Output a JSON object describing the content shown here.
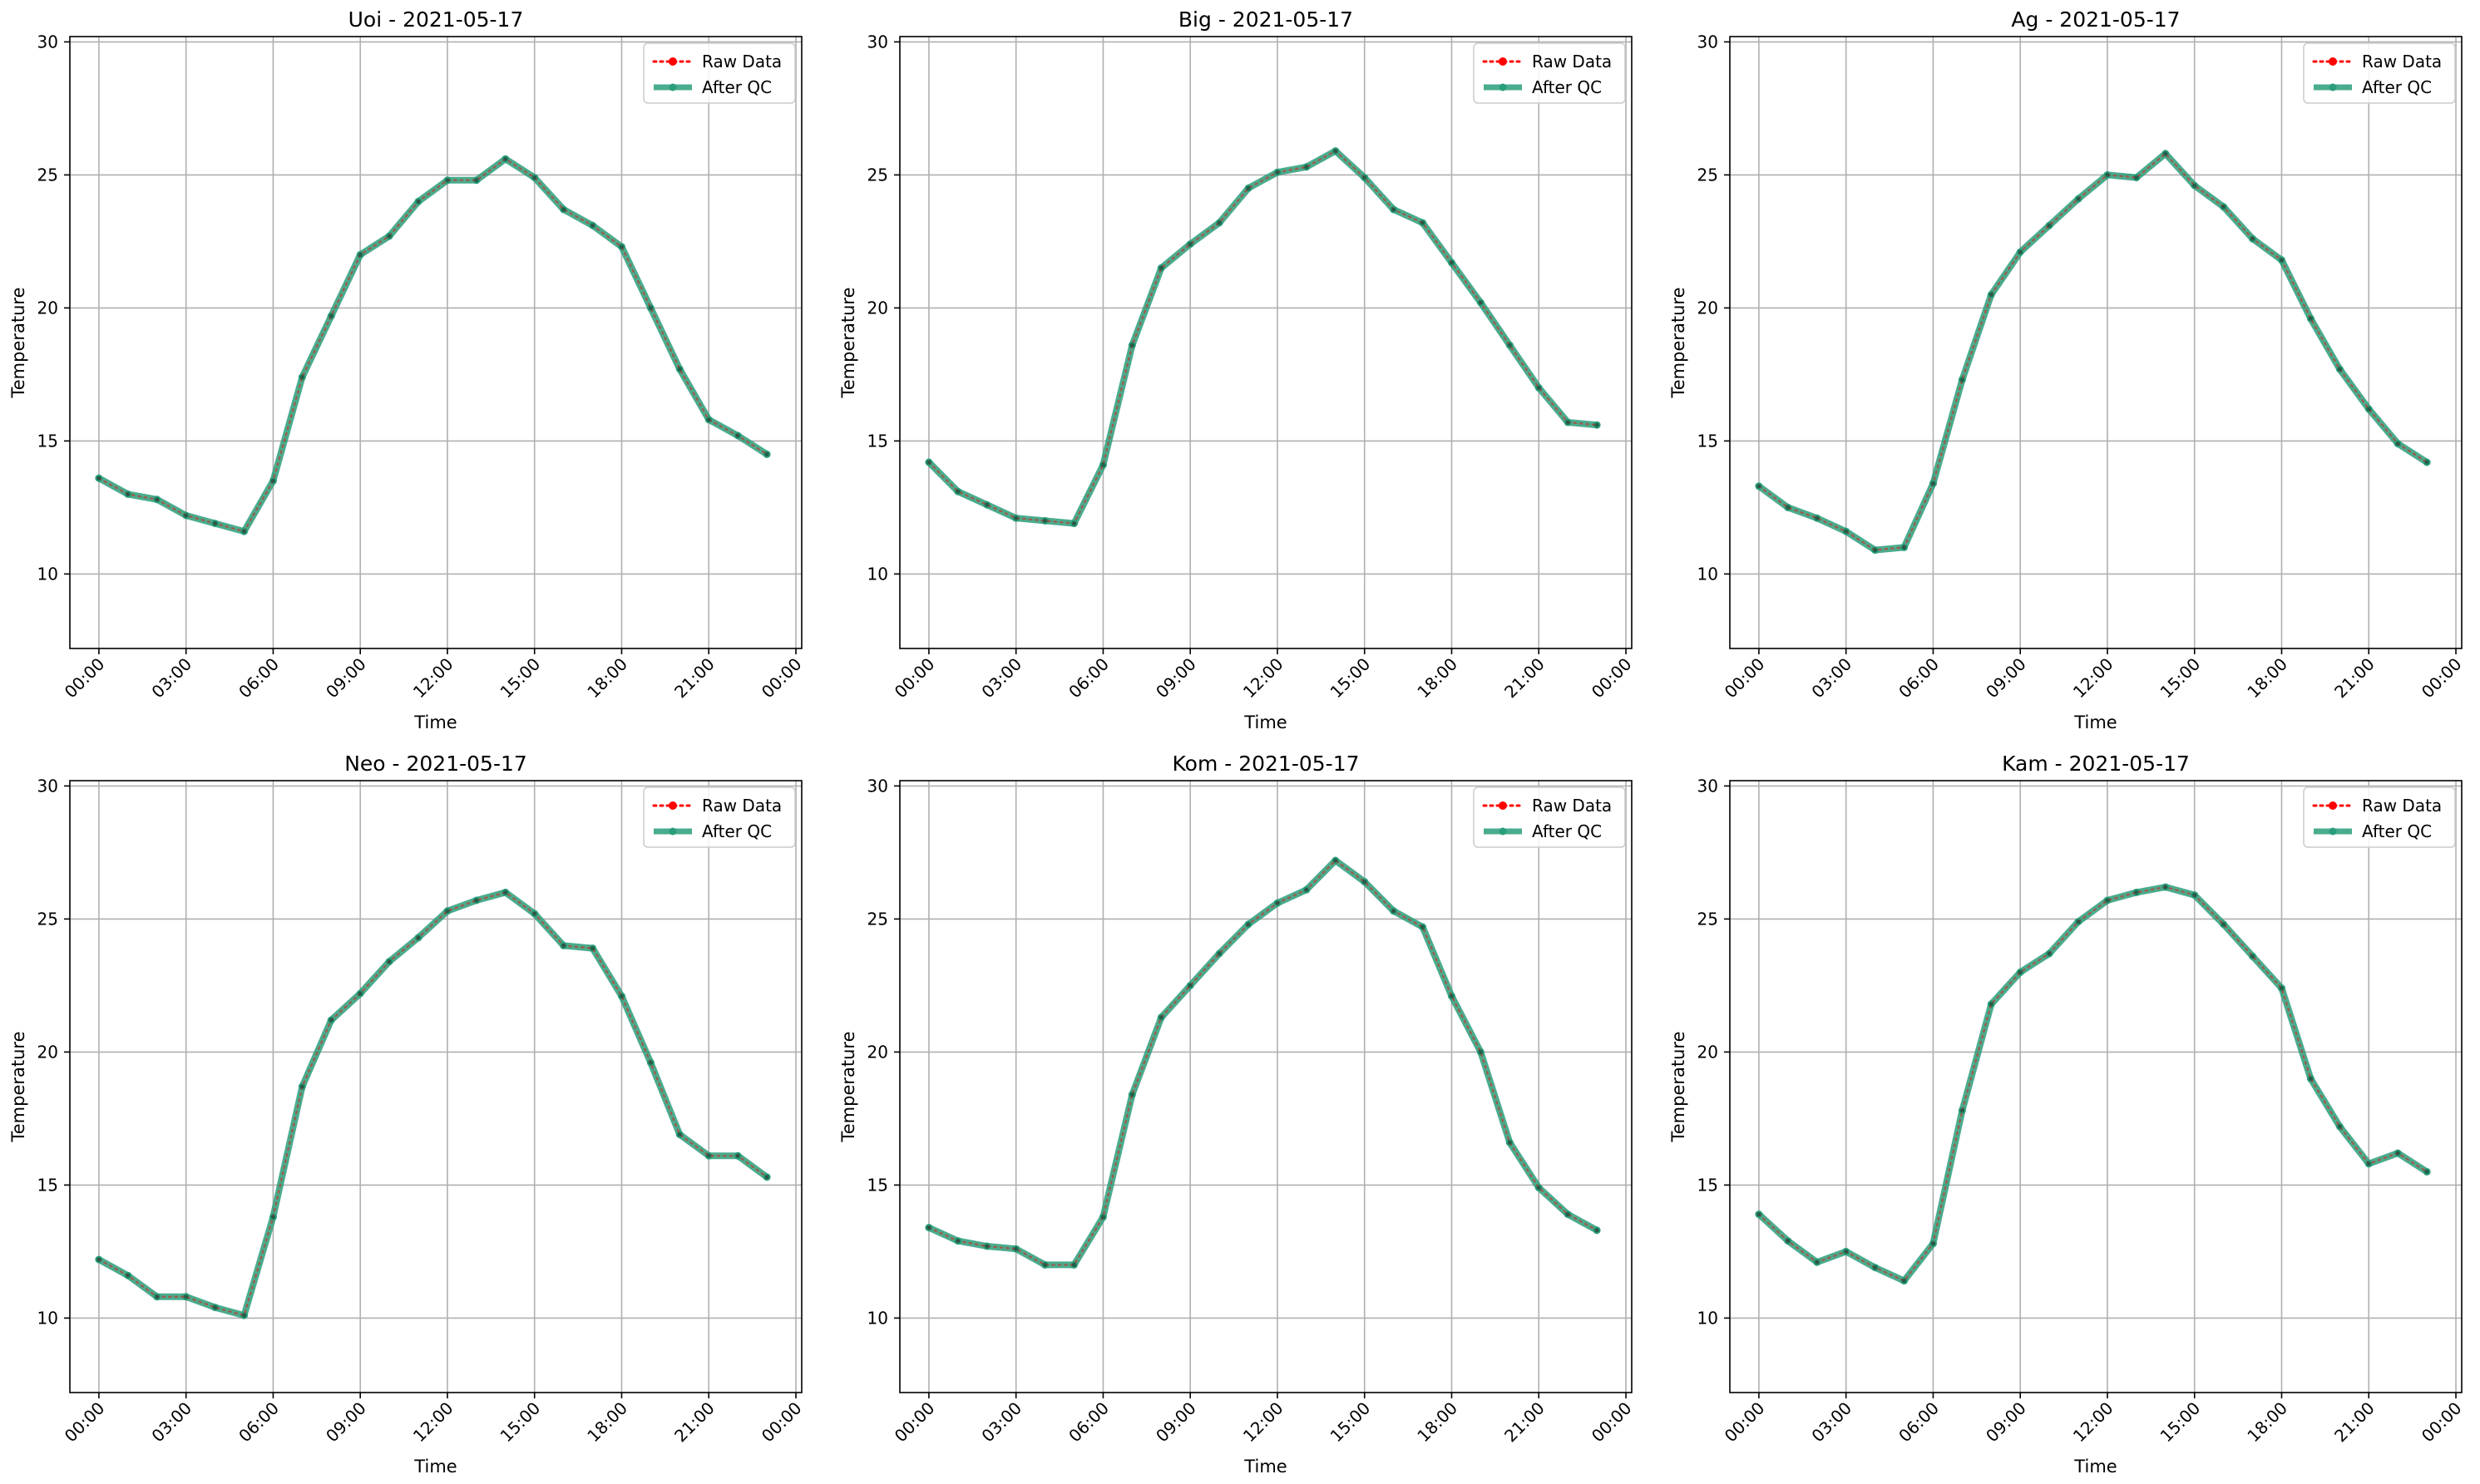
{
  "chart_data": [
    {
      "type": "line",
      "title": "Uoi - 2021-05-17",
      "xlabel": "Time",
      "ylabel": "Temperature",
      "ylim": [
        7.2,
        30.2
      ],
      "yticks": [
        10,
        15,
        20,
        25,
        30
      ],
      "xlim": [
        -1,
        24.2
      ],
      "xticks": [
        0,
        3,
        6,
        9,
        12,
        15,
        18,
        21,
        24
      ],
      "xticklabels": [
        "00:00",
        "03:00",
        "06:00",
        "09:00",
        "12:00",
        "15:00",
        "18:00",
        "21:00",
        "00:00"
      ],
      "grid": true,
      "legend_position": "top-right",
      "x": [
        0,
        1,
        2,
        3,
        4,
        5,
        6,
        7,
        8,
        9,
        10,
        11,
        12,
        13,
        14,
        15,
        16,
        17,
        18,
        19,
        20,
        21,
        22,
        23
      ],
      "series": [
        {
          "name": "Raw Data",
          "color": "#ff0000",
          "style": "dotted",
          "values": [
            13.6,
            13.0,
            12.8,
            12.2,
            11.9,
            11.6,
            13.5,
            17.4,
            19.7,
            22.0,
            22.7,
            24.0,
            24.8,
            24.8,
            25.6,
            24.9,
            23.7,
            23.1,
            22.3,
            20.0,
            17.7,
            15.8,
            15.2,
            14.5
          ]
        },
        {
          "name": "After QC",
          "color": "#2a9d7a",
          "style": "solid",
          "values": [
            13.6,
            13.0,
            12.8,
            12.2,
            11.9,
            11.6,
            13.5,
            17.4,
            19.7,
            22.0,
            22.7,
            24.0,
            24.8,
            24.8,
            25.6,
            24.9,
            23.7,
            23.1,
            22.3,
            20.0,
            17.7,
            15.8,
            15.2,
            14.5
          ]
        }
      ]
    },
    {
      "type": "line",
      "title": "Big - 2021-05-17",
      "xlabel": "Time",
      "ylabel": "Temperature",
      "ylim": [
        7.2,
        30.2
      ],
      "yticks": [
        10,
        15,
        20,
        25,
        30
      ],
      "xlim": [
        -1,
        24.2
      ],
      "xticks": [
        0,
        3,
        6,
        9,
        12,
        15,
        18,
        21,
        24
      ],
      "xticklabels": [
        "00:00",
        "03:00",
        "06:00",
        "09:00",
        "12:00",
        "15:00",
        "18:00",
        "21:00",
        "00:00"
      ],
      "grid": true,
      "legend_position": "top-right",
      "x": [
        0,
        1,
        2,
        3,
        4,
        5,
        6,
        7,
        8,
        9,
        10,
        11,
        12,
        13,
        14,
        15,
        16,
        17,
        18,
        19,
        20,
        21,
        22,
        23
      ],
      "series": [
        {
          "name": "Raw Data",
          "color": "#ff0000",
          "style": "dotted",
          "values": [
            14.2,
            13.1,
            12.6,
            12.1,
            12.0,
            11.9,
            14.1,
            18.6,
            21.5,
            22.4,
            23.2,
            24.5,
            25.1,
            25.3,
            25.9,
            24.9,
            23.7,
            23.2,
            21.7,
            20.2,
            18.6,
            17.0,
            15.7,
            15.6
          ]
        },
        {
          "name": "After QC",
          "color": "#2a9d7a",
          "style": "solid",
          "values": [
            14.2,
            13.1,
            12.6,
            12.1,
            12.0,
            11.9,
            14.1,
            18.6,
            21.5,
            22.4,
            23.2,
            24.5,
            25.1,
            25.3,
            25.9,
            24.9,
            23.7,
            23.2,
            21.7,
            20.2,
            18.6,
            17.0,
            15.7,
            15.6
          ]
        }
      ]
    },
    {
      "type": "line",
      "title": "Ag - 2021-05-17",
      "xlabel": "Time",
      "ylabel": "Temperature",
      "ylim": [
        7.2,
        30.2
      ],
      "yticks": [
        10,
        15,
        20,
        25,
        30
      ],
      "xlim": [
        -1,
        24.2
      ],
      "xticks": [
        0,
        3,
        6,
        9,
        12,
        15,
        18,
        21,
        24
      ],
      "xticklabels": [
        "00:00",
        "03:00",
        "06:00",
        "09:00",
        "12:00",
        "15:00",
        "18:00",
        "21:00",
        "00:00"
      ],
      "grid": true,
      "legend_position": "top-right",
      "x": [
        0,
        1,
        2,
        3,
        4,
        5,
        6,
        7,
        8,
        9,
        10,
        11,
        12,
        13,
        14,
        15,
        16,
        17,
        18,
        19,
        20,
        21,
        22,
        23
      ],
      "series": [
        {
          "name": "Raw Data",
          "color": "#ff0000",
          "style": "dotted",
          "values": [
            13.3,
            12.5,
            12.1,
            11.6,
            10.9,
            11.0,
            13.4,
            17.3,
            20.5,
            22.1,
            23.1,
            24.1,
            25.0,
            24.9,
            25.8,
            24.6,
            23.8,
            22.6,
            21.8,
            19.6,
            17.7,
            16.2,
            14.9,
            14.2
          ]
        },
        {
          "name": "After QC",
          "color": "#2a9d7a",
          "style": "solid",
          "values": [
            13.3,
            12.5,
            12.1,
            11.6,
            10.9,
            11.0,
            13.4,
            17.3,
            20.5,
            22.1,
            23.1,
            24.1,
            25.0,
            24.9,
            25.8,
            24.6,
            23.8,
            22.6,
            21.8,
            19.6,
            17.7,
            16.2,
            14.9,
            14.2
          ]
        }
      ]
    },
    {
      "type": "line",
      "title": "Neo - 2021-05-17",
      "xlabel": "Time",
      "ylabel": "Temperature",
      "ylim": [
        7.2,
        30.2
      ],
      "yticks": [
        10,
        15,
        20,
        25,
        30
      ],
      "xlim": [
        -1,
        24.2
      ],
      "xticks": [
        0,
        3,
        6,
        9,
        12,
        15,
        18,
        21,
        24
      ],
      "xticklabels": [
        "00:00",
        "03:00",
        "06:00",
        "09:00",
        "12:00",
        "15:00",
        "18:00",
        "21:00",
        "00:00"
      ],
      "grid": true,
      "legend_position": "top-right",
      "x": [
        0,
        1,
        2,
        3,
        4,
        5,
        6,
        7,
        8,
        9,
        10,
        11,
        12,
        13,
        14,
        15,
        16,
        17,
        18,
        19,
        20,
        21,
        22,
        23
      ],
      "series": [
        {
          "name": "Raw Data",
          "color": "#ff0000",
          "style": "dotted",
          "values": [
            12.2,
            11.6,
            10.8,
            10.8,
            10.4,
            10.1,
            13.8,
            18.7,
            21.2,
            22.2,
            23.4,
            24.3,
            25.3,
            25.7,
            26.0,
            25.2,
            24.0,
            23.9,
            22.1,
            19.6,
            16.9,
            16.1,
            16.1,
            15.3
          ]
        },
        {
          "name": "After QC",
          "color": "#2a9d7a",
          "style": "solid",
          "values": [
            12.2,
            11.6,
            10.8,
            10.8,
            10.4,
            10.1,
            13.8,
            18.7,
            21.2,
            22.2,
            23.4,
            24.3,
            25.3,
            25.7,
            26.0,
            25.2,
            24.0,
            23.9,
            22.1,
            19.6,
            16.9,
            16.1,
            16.1,
            15.3
          ]
        }
      ]
    },
    {
      "type": "line",
      "title": "Kom - 2021-05-17",
      "xlabel": "Time",
      "ylabel": "Temperature",
      "ylim": [
        7.2,
        30.2
      ],
      "yticks": [
        10,
        15,
        20,
        25,
        30
      ],
      "xlim": [
        -1,
        24.2
      ],
      "xticks": [
        0,
        3,
        6,
        9,
        12,
        15,
        18,
        21,
        24
      ],
      "xticklabels": [
        "00:00",
        "03:00",
        "06:00",
        "09:00",
        "12:00",
        "15:00",
        "18:00",
        "21:00",
        "00:00"
      ],
      "grid": true,
      "legend_position": "top-right",
      "x": [
        0,
        1,
        2,
        3,
        4,
        5,
        6,
        7,
        8,
        9,
        10,
        11,
        12,
        13,
        14,
        15,
        16,
        17,
        18,
        19,
        20,
        21,
        22,
        23
      ],
      "series": [
        {
          "name": "Raw Data",
          "color": "#ff0000",
          "style": "dotted",
          "values": [
            13.4,
            12.9,
            12.7,
            12.6,
            12.0,
            12.0,
            13.8,
            18.4,
            21.3,
            22.5,
            23.7,
            24.8,
            25.6,
            26.1,
            27.2,
            26.4,
            25.3,
            24.7,
            22.1,
            20.0,
            16.6,
            14.9,
            13.9,
            13.3
          ]
        },
        {
          "name": "After QC",
          "color": "#2a9d7a",
          "style": "solid",
          "values": [
            13.4,
            12.9,
            12.7,
            12.6,
            12.0,
            12.0,
            13.8,
            18.4,
            21.3,
            22.5,
            23.7,
            24.8,
            25.6,
            26.1,
            27.2,
            26.4,
            25.3,
            24.7,
            22.1,
            20.0,
            16.6,
            14.9,
            13.9,
            13.3
          ]
        }
      ]
    },
    {
      "type": "line",
      "title": "Kam - 2021-05-17",
      "xlabel": "Time",
      "ylabel": "Temperature",
      "ylim": [
        7.2,
        30.2
      ],
      "yticks": [
        10,
        15,
        20,
        25,
        30
      ],
      "xlim": [
        -1,
        24.2
      ],
      "xticks": [
        0,
        3,
        6,
        9,
        12,
        15,
        18,
        21,
        24
      ],
      "xticklabels": [
        "00:00",
        "03:00",
        "06:00",
        "09:00",
        "12:00",
        "15:00",
        "18:00",
        "21:00",
        "00:00"
      ],
      "grid": true,
      "legend_position": "top-right",
      "x": [
        0,
        1,
        2,
        3,
        4,
        5,
        6,
        7,
        8,
        9,
        10,
        11,
        12,
        13,
        14,
        15,
        16,
        17,
        18,
        19,
        20,
        21,
        22,
        23
      ],
      "series": [
        {
          "name": "Raw Data",
          "color": "#ff0000",
          "style": "dotted",
          "values": [
            13.9,
            12.9,
            12.1,
            12.5,
            11.9,
            11.4,
            12.8,
            17.8,
            21.8,
            23.0,
            23.7,
            24.9,
            25.7,
            26.0,
            26.2,
            25.9,
            24.8,
            23.6,
            22.4,
            19.0,
            17.2,
            15.8,
            16.2,
            15.5
          ]
        },
        {
          "name": "After QC",
          "color": "#2a9d7a",
          "style": "solid",
          "values": [
            13.9,
            12.9,
            12.1,
            12.5,
            11.9,
            11.4,
            12.8,
            17.8,
            21.8,
            23.0,
            23.7,
            24.9,
            25.7,
            26.0,
            26.2,
            25.9,
            24.8,
            23.6,
            22.4,
            19.0,
            17.2,
            15.8,
            16.2,
            15.5
          ]
        }
      ]
    }
  ]
}
